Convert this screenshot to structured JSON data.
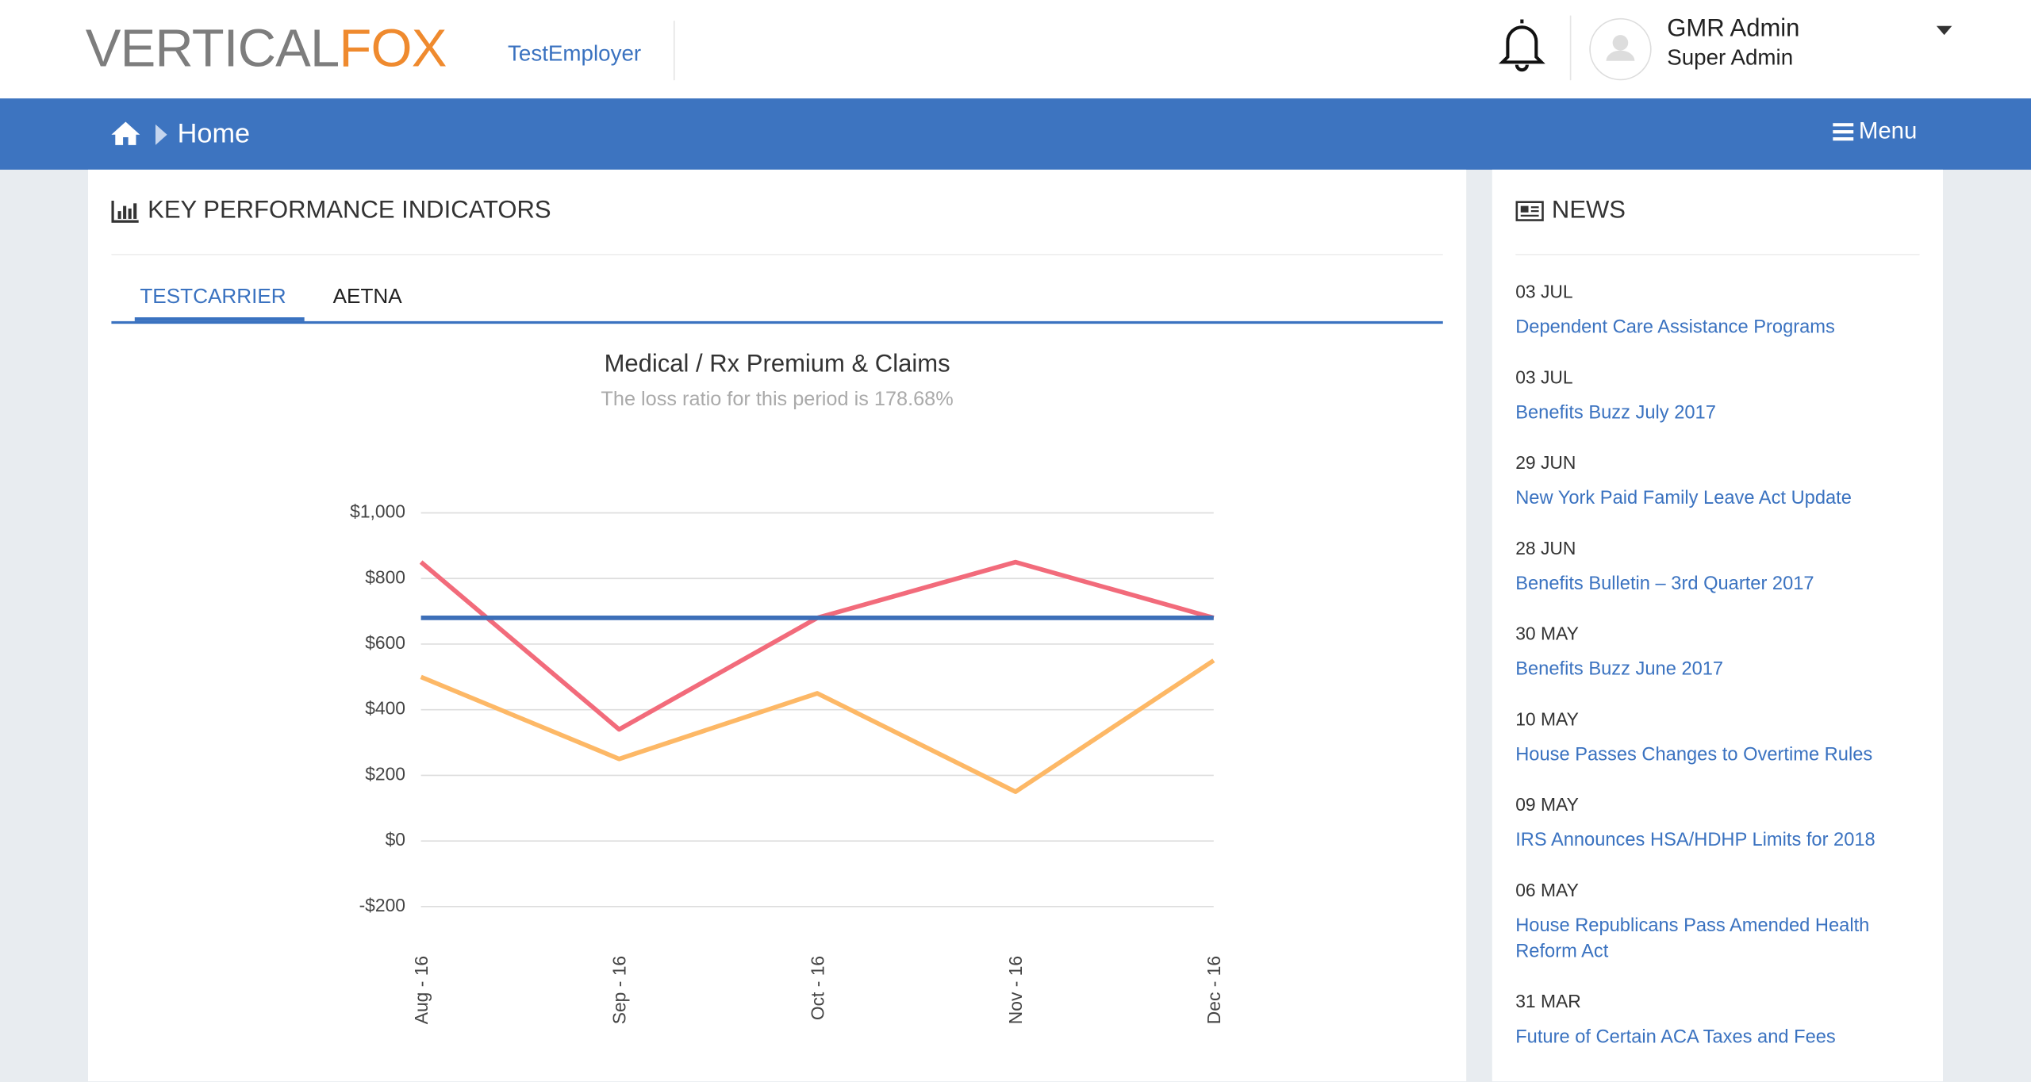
{
  "header": {
    "logo": [
      "VERTICAL",
      "FOX"
    ],
    "employer": "TestEmployer",
    "user_name": "GMR Admin",
    "user_role": "Super Admin"
  },
  "nav": {
    "breadcrumb": "Home",
    "menu": "Menu"
  },
  "kpi": {
    "title": "KEY PERFORMANCE INDICATORS",
    "tabs": [
      "TESTCARRIER",
      "AETNA"
    ]
  },
  "chart_data": {
    "type": "line",
    "title": "Medical / Rx Premium & Claims",
    "subtitle": "The loss ratio for this period is 178.68%",
    "categories": [
      "Aug - 16",
      "Sep - 16",
      "Oct - 16",
      "Nov - 16",
      "Dec - 16"
    ],
    "series": [
      {
        "color": "#f26b7b",
        "values": [
          850,
          340,
          680,
          850,
          680
        ]
      },
      {
        "color": "#3d6fb8",
        "values": [
          680,
          680,
          680,
          680,
          680
        ]
      },
      {
        "color": "#fdb866",
        "values": [
          500,
          250,
          450,
          150,
          550
        ]
      }
    ],
    "ylim": [
      -200,
      1000
    ],
    "yticks": [
      {
        "value": -200,
        "label": "-$200"
      },
      {
        "value": 0,
        "label": "$0"
      },
      {
        "value": 200,
        "label": "$200"
      },
      {
        "value": 400,
        "label": "$400"
      },
      {
        "value": 600,
        "label": "$600"
      },
      {
        "value": 800,
        "label": "$800"
      },
      {
        "value": 1000,
        "label": "$1,000"
      }
    ],
    "grid": true
  },
  "news": {
    "title": "NEWS",
    "items": [
      {
        "date": "03 JUL",
        "title": "Dependent Care Assistance Programs"
      },
      {
        "date": "03 JUL",
        "title": "Benefits Buzz July 2017"
      },
      {
        "date": "29 JUN",
        "title": "New York Paid Family Leave Act Update"
      },
      {
        "date": "28 JUN",
        "title": "Benefits Bulletin – 3rd Quarter 2017"
      },
      {
        "date": "30 MAY",
        "title": "Benefits Buzz June 2017"
      },
      {
        "date": "10 MAY",
        "title": "House Passes Changes to Overtime Rules"
      },
      {
        "date": "09 MAY",
        "title": "IRS Announces HSA/HDHP Limits for 2018"
      },
      {
        "date": "06 MAY",
        "title": "House Republicans Pass Amended Health Reform Act"
      },
      {
        "date": "31 MAR",
        "title": "Future of Certain ACA Taxes and Fees"
      }
    ]
  }
}
